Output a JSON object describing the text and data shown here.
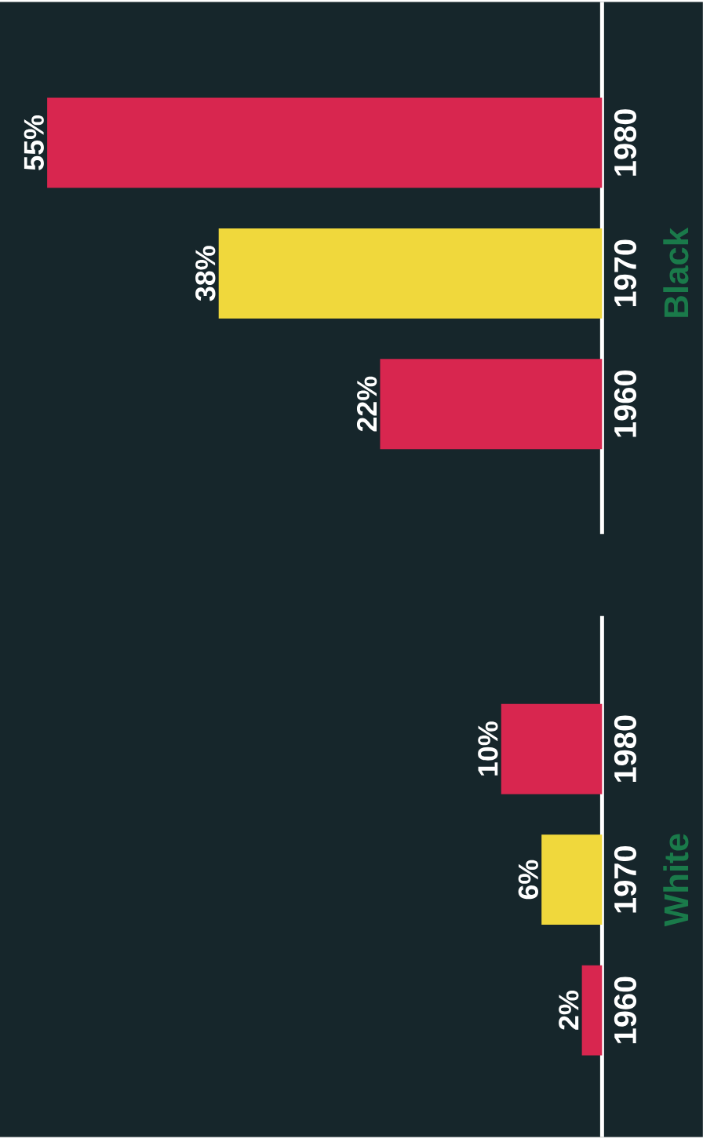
{
  "chart_data": [
    {
      "type": "bar",
      "orientation": "horizontal",
      "ylabel": "Black",
      "categories": [
        "1980",
        "1970",
        "1960"
      ],
      "values": [
        55,
        38,
        22
      ],
      "colors": [
        "#d8264f",
        "#f0d83c",
        "#d8264f"
      ],
      "value_labels": [
        "55%",
        "38%",
        "22%"
      ]
    },
    {
      "type": "bar",
      "orientation": "horizontal",
      "ylabel": "White",
      "categories": [
        "1980",
        "1970",
        "1960"
      ],
      "values": [
        10,
        6,
        2
      ],
      "colors": [
        "#d8264f",
        "#f0d83c",
        "#d8264f"
      ],
      "value_labels": [
        "10%",
        "6%",
        "2%"
      ]
    }
  ]
}
